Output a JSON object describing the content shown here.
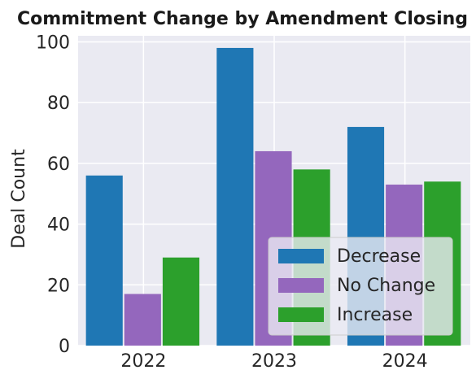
{
  "chart_data": {
    "type": "bar",
    "title": "Commitment Change by Amendment Closing",
    "xlabel": "",
    "ylabel": "Deal Count",
    "categories": [
      "2022",
      "2023",
      "2024"
    ],
    "series": [
      {
        "name": "Decrease",
        "values": [
          56,
          98,
          72
        ],
        "color": "#1f77b4"
      },
      {
        "name": "No Change",
        "values": [
          17,
          64,
          53
        ],
        "color": "#9467bd"
      },
      {
        "name": "Increase",
        "values": [
          29,
          58,
          54
        ],
        "color": "#2ca02c"
      }
    ],
    "ylim": [
      0,
      102
    ],
    "yticks": [
      0,
      20,
      40,
      60,
      80,
      100
    ],
    "grid": true,
    "legend_position": "lower-right",
    "background": "#eaeaf2"
  }
}
